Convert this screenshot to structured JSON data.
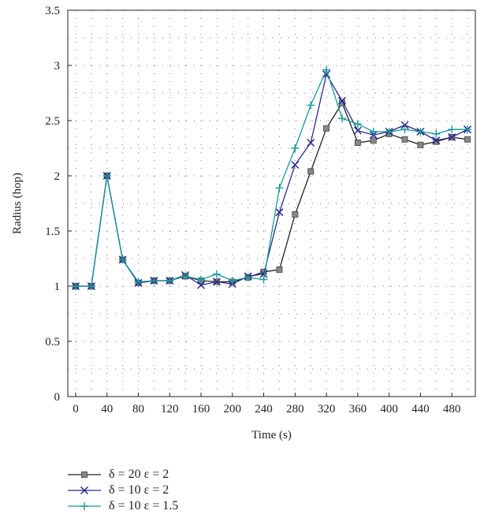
{
  "chart_data": {
    "type": "line",
    "xlabel": "Time (s)",
    "ylabel": "Radius (hop)",
    "xlim": [
      -10,
      510
    ],
    "ylim": [
      0,
      3.5
    ],
    "xticks": [
      "0",
      "40",
      "80",
      "120",
      "160",
      "200",
      "240",
      "280",
      "320",
      "360",
      "400",
      "440",
      "480"
    ],
    "yticks": [
      "0",
      "0.5",
      "1",
      "1.5",
      "2",
      "2.5",
      "3",
      "3.5"
    ],
    "grid": "dotted",
    "legend_position": "below",
    "x": [
      0,
      20,
      40,
      60,
      80,
      100,
      120,
      140,
      160,
      180,
      200,
      220,
      240,
      260,
      280,
      300,
      320,
      340,
      360,
      380,
      400,
      420,
      440,
      460,
      480,
      500
    ],
    "series": [
      {
        "name": "δ = 20 ε = 2",
        "marker": "square",
        "color": "#222222",
        "values": [
          1.0,
          1.0,
          2.0,
          1.24,
          1.03,
          1.05,
          1.05,
          1.09,
          1.05,
          1.04,
          1.04,
          1.08,
          1.13,
          1.15,
          1.65,
          2.04,
          2.43,
          2.66,
          2.3,
          2.32,
          2.38,
          2.33,
          2.28,
          2.31,
          2.35,
          2.33
        ]
      },
      {
        "name": "δ = 10 ε = 2",
        "marker": "x",
        "color": "#2a2a8c",
        "values": [
          1.0,
          1.0,
          2.0,
          1.24,
          1.03,
          1.05,
          1.05,
          1.1,
          1.01,
          1.04,
          1.02,
          1.09,
          1.11,
          1.67,
          2.1,
          2.3,
          2.92,
          2.68,
          2.41,
          2.37,
          2.4,
          2.46,
          2.4,
          2.32,
          2.35,
          2.42
        ]
      },
      {
        "name": "δ = 10 ε = 1.5",
        "marker": "plus",
        "color": "#1a9a9a",
        "values": [
          1.0,
          1.0,
          2.0,
          1.24,
          1.04,
          1.05,
          1.05,
          1.09,
          1.06,
          1.11,
          1.05,
          1.08,
          1.06,
          1.89,
          2.25,
          2.64,
          2.96,
          2.52,
          2.47,
          2.4,
          2.4,
          2.42,
          2.4,
          2.38,
          2.42,
          2.42
        ]
      }
    ]
  }
}
